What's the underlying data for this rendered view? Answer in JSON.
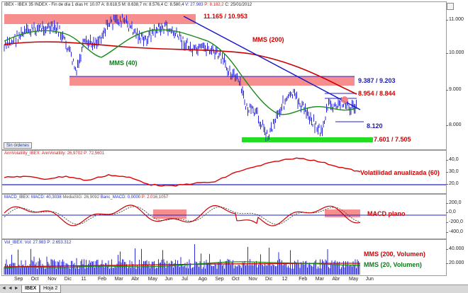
{
  "main_chart": {
    "header_parts": [
      {
        "text": "IBEX - IBEX 35 INDEX - Fin de día 1 días H: 10.07  A: 8.618,5  M: 8.638,7  m: 8.576,4  C: 8.580,4  ",
        "color": "#222222"
      },
      {
        "text": "V: 27.983",
        "color": "#1f2fd6"
      },
      {
        "text": "  P: 8.182,2  ",
        "color": "#d02020"
      },
      {
        "text": "C: 25/01/2012",
        "color": "#222222"
      }
    ],
    "y_ticks": [
      "11.000",
      "10.000",
      "9.000",
      "8.000"
    ],
    "annotations": {
      "resistance_top": "11.165 / 10.953",
      "mms200": "MMS (200)",
      "mms40": "MMS (40)",
      "level_mid": "9.387 / 9.203",
      "level_8954": "8.954 / 8.844",
      "level_8120": "8.120",
      "support_bottom": "7.601 / 7.505"
    },
    "orders_button": "Sin órdenes"
  },
  "volatility_pane": {
    "header": "AnnVolatility_IBEX: AnnVolatility: 26,9702  P: 72,5601",
    "y_ticks": [
      "40,0",
      "30,0",
      "20,0"
    ],
    "label": "Volatilidad anualizada (60)"
  },
  "macd_pane": {
    "header_parts": [
      {
        "text": "MACD_IBEX: MACD: 40,3038  ",
        "color": "#1f2fd6"
      },
      {
        "text": "MediaSIG: 26,9092  ",
        "color": "#555555"
      },
      {
        "text": "Banc_MACD: 0,0000  ",
        "color": "#1f2fd6"
      },
      {
        "text": "P: 2.016,1057",
        "color": "#d02020"
      }
    ],
    "y_ticks": [
      "200,0",
      "0,0",
      "-200,0",
      "-400,0"
    ],
    "label": "MACD plano"
  },
  "volume_pane": {
    "header": "Vol_IBEX: Vol: 27.983  P: 2.653.312",
    "y_ticks": [
      "40.000",
      "20.000"
    ],
    "label_mms200": "MMS (200, Volumen)",
    "label_mms20": "MMS (20, Volumen)"
  },
  "x_axis": {
    "months": [
      "Sep",
      "Oct",
      "Nov",
      "Dic",
      "11",
      "Feb",
      "Mar",
      "Abr",
      "May",
      "Jun",
      "Jul",
      "Ago",
      "Sep",
      "Oct",
      "Nov",
      "Dic",
      "12",
      "Feb",
      "Mar",
      "Abr",
      "May",
      "Jun"
    ]
  },
  "tabs": {
    "nav": "◄ ◄ ► ►|",
    "items": [
      "IBEX",
      "Hoja 2"
    ],
    "active_index": 0
  },
  "colors": {
    "price_bars": "#2a2ae0",
    "mms40": "#1a8a1a",
    "mms200": "#cc0000",
    "trendline": "#1515c8",
    "resistance_band": "#f47a7a",
    "support_band": "#22dd22",
    "level_line": "#2222cc",
    "volatility": "#dd0000",
    "macd_band": "#f47a7a"
  }
}
